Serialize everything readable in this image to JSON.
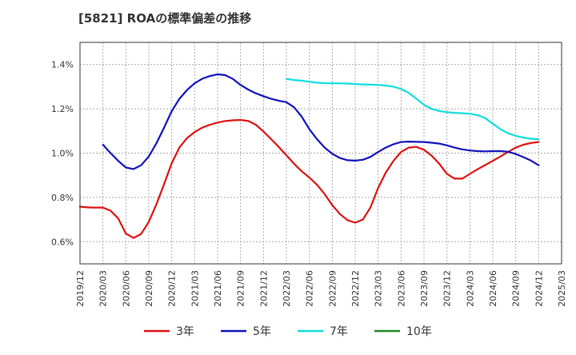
{
  "chart_data": {
    "type": "line",
    "title": "[5821]  ROAの標準偏差の推移",
    "xlabel": "",
    "ylabel": "",
    "ylim": [
      0.5,
      1.5
    ],
    "yticks": [
      0.6,
      0.8,
      1.0,
      1.2,
      1.4
    ],
    "ytick_labels": [
      "0.6%",
      "0.8%",
      "1.0%",
      "1.2%",
      "1.4%"
    ],
    "xticks": [
      "2019/12",
      "2020/03",
      "2020/06",
      "2020/09",
      "2020/12",
      "2021/03",
      "2021/06",
      "2021/09",
      "2021/12",
      "2022/03",
      "2022/06",
      "2022/09",
      "2022/12",
      "2023/03",
      "2023/06",
      "2023/09",
      "2023/12",
      "2024/03",
      "2024/06",
      "2024/09",
      "2024/12",
      "2025/03"
    ],
    "grid": true,
    "legend_position": "bottom",
    "series": [
      {
        "name": "3年",
        "color": "#dd1111",
        "points": [
          [
            "2019/12",
            0.758
          ],
          [
            "2020/01",
            0.755
          ],
          [
            "2020/02",
            0.754
          ],
          [
            "2020/03",
            0.754
          ],
          [
            "2020/04",
            0.74
          ],
          [
            "2020/05",
            0.705
          ],
          [
            "2020/06",
            0.637
          ],
          [
            "2020/07",
            0.617
          ],
          [
            "2020/08",
            0.635
          ],
          [
            "2020/09",
            0.69
          ],
          [
            "2020/10",
            0.77
          ],
          [
            "2020/11",
            0.86
          ],
          [
            "2020/12",
            0.955
          ],
          [
            "2021/01",
            1.025
          ],
          [
            "2021/02",
            1.068
          ],
          [
            "2021/03",
            1.095
          ],
          [
            "2021/04",
            1.115
          ],
          [
            "2021/05",
            1.128
          ],
          [
            "2021/06",
            1.138
          ],
          [
            "2021/07",
            1.145
          ],
          [
            "2021/08",
            1.148
          ],
          [
            "2021/09",
            1.15
          ],
          [
            "2021/10",
            1.145
          ],
          [
            "2021/11",
            1.128
          ],
          [
            "2021/12",
            1.098
          ],
          [
            "2022/01",
            1.063
          ],
          [
            "2022/02",
            1.028
          ],
          [
            "2022/03",
            0.99
          ],
          [
            "2022/04",
            0.952
          ],
          [
            "2022/05",
            0.918
          ],
          [
            "2022/06",
            0.89
          ],
          [
            "2022/07",
            0.857
          ],
          [
            "2022/08",
            0.815
          ],
          [
            "2022/09",
            0.765
          ],
          [
            "2022/10",
            0.725
          ],
          [
            "2022/11",
            0.697
          ],
          [
            "2022/12",
            0.686
          ],
          [
            "2023/01",
            0.7
          ],
          [
            "2023/02",
            0.755
          ],
          [
            "2023/03",
            0.843
          ],
          [
            "2023/04",
            0.912
          ],
          [
            "2023/05",
            0.965
          ],
          [
            "2023/06",
            1.005
          ],
          [
            "2023/07",
            1.025
          ],
          [
            "2023/08",
            1.028
          ],
          [
            "2023/09",
            1.015
          ],
          [
            "2023/10",
            0.988
          ],
          [
            "2023/11",
            0.952
          ],
          [
            "2023/12",
            0.906
          ],
          [
            "2024/01",
            0.885
          ],
          [
            "2024/02",
            0.885
          ],
          [
            "2024/03",
            0.906
          ],
          [
            "2024/04",
            0.927
          ],
          [
            "2024/05",
            0.946
          ],
          [
            "2024/06",
            0.965
          ],
          [
            "2024/07",
            0.985
          ],
          [
            "2024/08",
            1.005
          ],
          [
            "2024/09",
            1.025
          ],
          [
            "2024/10",
            1.038
          ],
          [
            "2024/11",
            1.046
          ],
          [
            "2024/12",
            1.05
          ]
        ]
      },
      {
        "name": "5年",
        "color": "#1111bb",
        "points": [
          [
            "2020/03",
            1.038
          ],
          [
            "2020/04",
            1.0
          ],
          [
            "2020/05",
            0.965
          ],
          [
            "2020/06",
            0.935
          ],
          [
            "2020/07",
            0.928
          ],
          [
            "2020/08",
            0.945
          ],
          [
            "2020/09",
            0.985
          ],
          [
            "2020/10",
            1.045
          ],
          [
            "2020/11",
            1.115
          ],
          [
            "2020/12",
            1.19
          ],
          [
            "2021/01",
            1.245
          ],
          [
            "2021/02",
            1.285
          ],
          [
            "2021/03",
            1.315
          ],
          [
            "2021/04",
            1.336
          ],
          [
            "2021/05",
            1.348
          ],
          [
            "2021/06",
            1.356
          ],
          [
            "2021/07",
            1.352
          ],
          [
            "2021/08",
            1.335
          ],
          [
            "2021/09",
            1.308
          ],
          [
            "2021/10",
            1.287
          ],
          [
            "2021/11",
            1.27
          ],
          [
            "2021/12",
            1.257
          ],
          [
            "2022/01",
            1.245
          ],
          [
            "2022/02",
            1.237
          ],
          [
            "2022/03",
            1.23
          ],
          [
            "2022/04",
            1.207
          ],
          [
            "2022/05",
            1.165
          ],
          [
            "2022/06",
            1.108
          ],
          [
            "2022/07",
            1.063
          ],
          [
            "2022/08",
            1.025
          ],
          [
            "2022/09",
            0.997
          ],
          [
            "2022/10",
            0.978
          ],
          [
            "2022/11",
            0.968
          ],
          [
            "2022/12",
            0.966
          ],
          [
            "2023/01",
            0.97
          ],
          [
            "2023/02",
            0.983
          ],
          [
            "2023/03",
            1.005
          ],
          [
            "2023/04",
            1.025
          ],
          [
            "2023/05",
            1.04
          ],
          [
            "2023/06",
            1.05
          ],
          [
            "2023/07",
            1.052
          ],
          [
            "2023/08",
            1.051
          ],
          [
            "2023/09",
            1.05
          ],
          [
            "2023/10",
            1.047
          ],
          [
            "2023/11",
            1.043
          ],
          [
            "2023/12",
            1.035
          ],
          [
            "2024/01",
            1.025
          ],
          [
            "2024/02",
            1.017
          ],
          [
            "2024/03",
            1.012
          ],
          [
            "2024/04",
            1.009
          ],
          [
            "2024/05",
            1.008
          ],
          [
            "2024/06",
            1.009
          ],
          [
            "2024/07",
            1.009
          ],
          [
            "2024/08",
            1.006
          ],
          [
            "2024/09",
            0.996
          ],
          [
            "2024/10",
            0.982
          ],
          [
            "2024/11",
            0.966
          ],
          [
            "2024/12",
            0.945
          ]
        ]
      },
      {
        "name": "7年",
        "color": "#11dddd",
        "points": [
          [
            "2022/03",
            1.335
          ],
          [
            "2022/04",
            1.33
          ],
          [
            "2022/05",
            1.327
          ],
          [
            "2022/06",
            1.322
          ],
          [
            "2022/07",
            1.318
          ],
          [
            "2022/08",
            1.316
          ],
          [
            "2022/09",
            1.315
          ],
          [
            "2022/10",
            1.315
          ],
          [
            "2022/11",
            1.314
          ],
          [
            "2022/12",
            1.312
          ],
          [
            "2023/01",
            1.31
          ],
          [
            "2023/02",
            1.309
          ],
          [
            "2023/03",
            1.308
          ],
          [
            "2023/04",
            1.305
          ],
          [
            "2023/05",
            1.3
          ],
          [
            "2023/06",
            1.29
          ],
          [
            "2023/07",
            1.272
          ],
          [
            "2023/08",
            1.246
          ],
          [
            "2023/09",
            1.218
          ],
          [
            "2023/10",
            1.2
          ],
          [
            "2023/11",
            1.19
          ],
          [
            "2023/12",
            1.185
          ],
          [
            "2024/01",
            1.182
          ],
          [
            "2024/02",
            1.18
          ],
          [
            "2024/03",
            1.178
          ],
          [
            "2024/04",
            1.172
          ],
          [
            "2024/05",
            1.158
          ],
          [
            "2024/06",
            1.133
          ],
          [
            "2024/07",
            1.108
          ],
          [
            "2024/08",
            1.09
          ],
          [
            "2024/09",
            1.078
          ],
          [
            "2024/10",
            1.07
          ],
          [
            "2024/11",
            1.065
          ],
          [
            "2024/12",
            1.062
          ]
        ]
      },
      {
        "name": "10年",
        "color": "#228822",
        "points": []
      }
    ]
  }
}
